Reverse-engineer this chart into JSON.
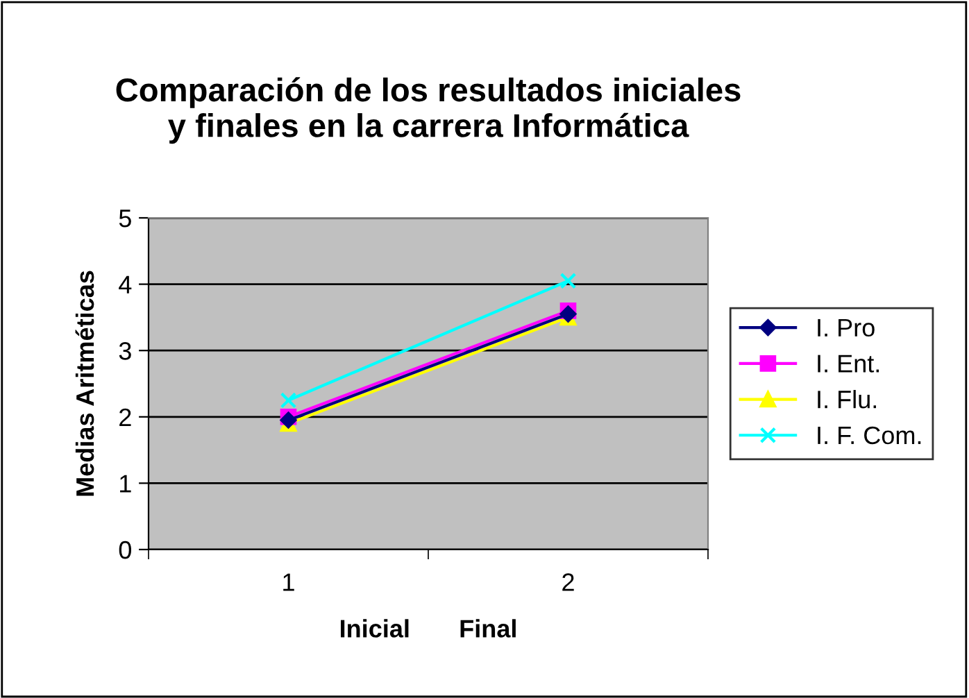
{
  "chart_data": {
    "type": "line",
    "title": "Comparación de los resultados iniciales\ny finales en la carrera Informática",
    "xlabel": "Inicial       Final",
    "ylabel": "Medias Aritméticas",
    "categories": [
      "1",
      "2"
    ],
    "series": [
      {
        "name": "I. Pro",
        "color": "#000080",
        "marker": "diamond",
        "values": [
          1.95,
          3.55
        ]
      },
      {
        "name": "I. Ent.",
        "color": "#ff00ff",
        "marker": "square",
        "values": [
          2.0,
          3.6
        ]
      },
      {
        "name": "I. Flu.",
        "color": "#ffff00",
        "marker": "triangle",
        "values": [
          1.9,
          3.5
        ]
      },
      {
        "name": "I. F. Com.",
        "color": "#00ffff",
        "marker": "cross",
        "values": [
          2.25,
          4.05
        ]
      }
    ],
    "ylim": [
      0,
      5
    ],
    "yticks": [
      0,
      1,
      2,
      3,
      4,
      5
    ],
    "grid": "y",
    "legend": "right"
  }
}
